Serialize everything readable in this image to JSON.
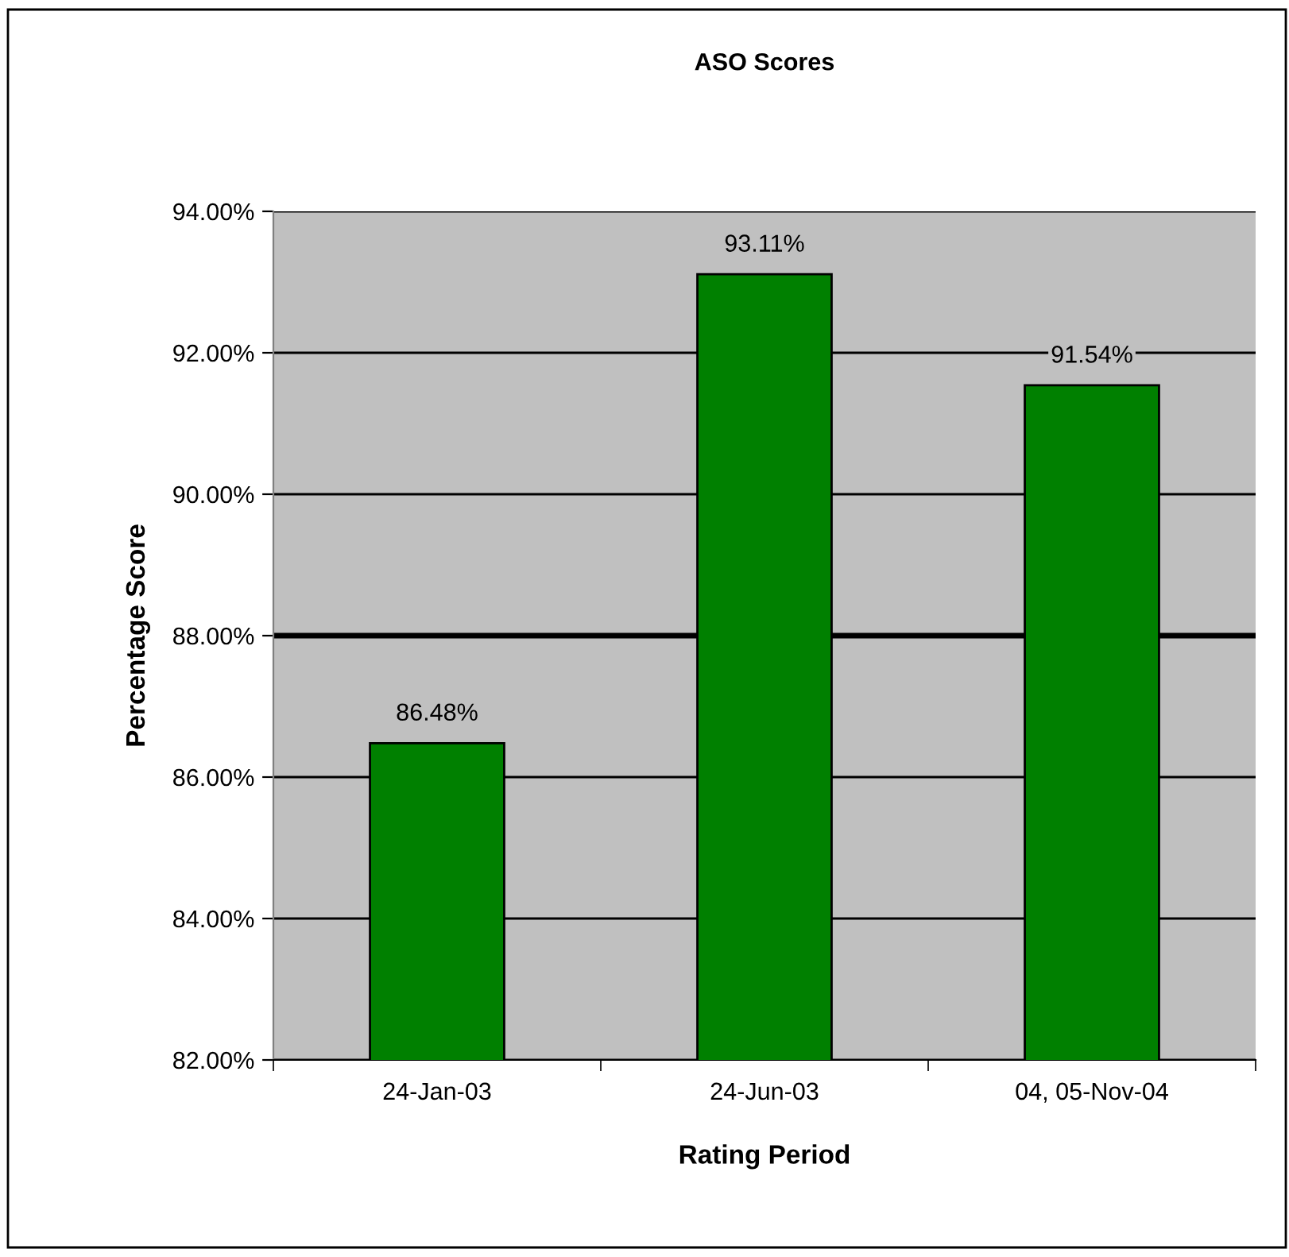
{
  "chart_data": {
    "type": "bar",
    "title": "ASO Scores",
    "xlabel": "Rating Period",
    "ylabel": "Percentage Score",
    "categories": [
      "24-Jan-03",
      "24-Jun-03",
      "04, 05-Nov-04"
    ],
    "values": [
      86.48,
      93.11,
      91.54
    ],
    "value_labels": [
      "86.48%",
      "93.11%",
      "91.54%"
    ],
    "color": "#008000",
    "ylim": [
      82,
      94
    ],
    "yticks": [
      {
        "value": 82,
        "label": "82.00%"
      },
      {
        "value": 84,
        "label": "84.00%"
      },
      {
        "value": 86,
        "label": "86.00%"
      },
      {
        "value": 88,
        "label": "88.00%"
      },
      {
        "value": 90,
        "label": "90.00%"
      },
      {
        "value": 92,
        "label": "92.00%"
      },
      {
        "value": 94,
        "label": "94.00%"
      }
    ],
    "ref_lines": [
      {
        "axis": "y",
        "value": 88,
        "color": "#000000"
      }
    ],
    "grid": "y"
  }
}
